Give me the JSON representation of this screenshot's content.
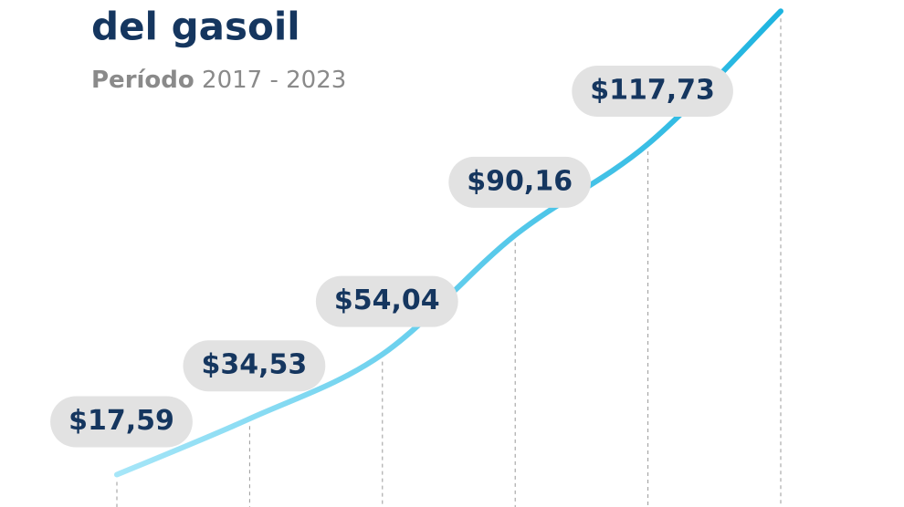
{
  "chart_data": {
    "type": "line",
    "title": "del gasoil",
    "subtitle_bold": "Período",
    "subtitle": "2017 - 2023",
    "values": [
      17.59,
      34.53,
      54.04,
      90.16,
      117.73,
      158
    ],
    "value_labels": [
      "$17,59",
      "$34,53",
      "$54,04",
      "$90,16",
      "$117,73",
      null
    ],
    "color": "#1eb4e0",
    "ylim": [
      10,
      160
    ]
  }
}
